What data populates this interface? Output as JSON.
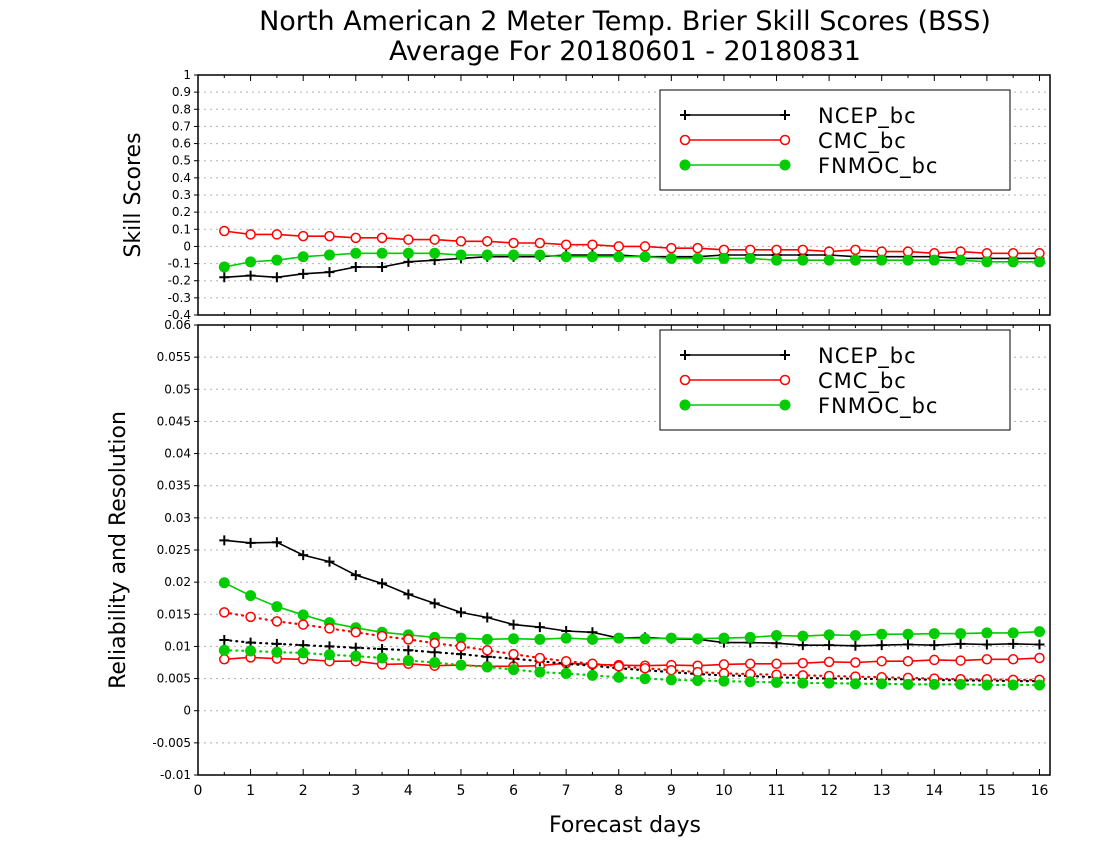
{
  "chart_data": {
    "title": "North American 2 Meter Temp. Brier Skill Scores (BSS)",
    "subtitle": "Average For 20180601 - 20180831",
    "xlabel": "Forecast days",
    "x_ticks": [
      "0",
      "1",
      "2",
      "3",
      "4",
      "5",
      "6",
      "7",
      "8",
      "9",
      "10",
      "11",
      "12",
      "13",
      "14",
      "15",
      "16"
    ],
    "xlim": [
      0,
      16.2
    ],
    "x": [
      0.5,
      1,
      1.5,
      2,
      2.5,
      3,
      3.5,
      4,
      4.5,
      5,
      5.5,
      6,
      6.5,
      7,
      7.5,
      8,
      8.5,
      9,
      9.5,
      10,
      10.5,
      11,
      11.5,
      12,
      12.5,
      13,
      13.5,
      14,
      14.5,
      15,
      15.5,
      16
    ],
    "panels": [
      {
        "type": "line",
        "ylabel": "Skill Scores",
        "ylim": [
          -0.4,
          1
        ],
        "y_ticks": [
          "1",
          "0.9",
          "0.8",
          "0.7",
          "0.6",
          "0.5",
          "0.4",
          "0.3",
          "0.2",
          "0.1",
          "0",
          "-0.1",
          "-0.2",
          "-0.3",
          "-0.4"
        ],
        "legend_position": "top-right",
        "series": [
          {
            "name": "NCEP_bc",
            "color": "#000000",
            "marker": "plus",
            "style": "solid",
            "values": [
              -0.18,
              -0.17,
              -0.18,
              -0.16,
              -0.15,
              -0.12,
              -0.12,
              -0.09,
              -0.08,
              -0.07,
              -0.06,
              -0.06,
              -0.06,
              -0.05,
              -0.05,
              -0.05,
              -0.06,
              -0.06,
              -0.06,
              -0.05,
              -0.05,
              -0.05,
              -0.05,
              -0.05,
              -0.06,
              -0.06,
              -0.06,
              -0.06,
              -0.07,
              -0.07,
              -0.07,
              -0.07
            ]
          },
          {
            "name": "CMC_bc",
            "color": "#ff0000",
            "marker": "circle-open",
            "style": "solid",
            "values": [
              0.09,
              0.07,
              0.07,
              0.06,
              0.06,
              0.05,
              0.05,
              0.04,
              0.04,
              0.03,
              0.03,
              0.02,
              0.02,
              0.01,
              0.01,
              0.0,
              0.0,
              -0.01,
              -0.01,
              -0.02,
              -0.02,
              -0.02,
              -0.02,
              -0.03,
              -0.02,
              -0.03,
              -0.03,
              -0.04,
              -0.03,
              -0.04,
              -0.04,
              -0.04
            ]
          },
          {
            "name": "FNMOC_bc",
            "color": "#00cc00",
            "marker": "circle-filled",
            "style": "solid",
            "values": [
              -0.12,
              -0.09,
              -0.08,
              -0.06,
              -0.05,
              -0.04,
              -0.04,
              -0.04,
              -0.04,
              -0.05,
              -0.05,
              -0.05,
              -0.05,
              -0.06,
              -0.06,
              -0.06,
              -0.06,
              -0.07,
              -0.07,
              -0.07,
              -0.07,
              -0.08,
              -0.08,
              -0.08,
              -0.08,
              -0.08,
              -0.08,
              -0.08,
              -0.08,
              -0.09,
              -0.09,
              -0.09
            ]
          }
        ]
      },
      {
        "type": "line",
        "ylabel": "Reliability and Resolution",
        "ylim": [
          -0.01,
          0.06
        ],
        "y_ticks": [
          "0.06",
          "0.055",
          "0.05",
          "0.045",
          "0.04",
          "0.035",
          "0.03",
          "0.025",
          "0.02",
          "0.015",
          "0.01",
          "0.005",
          "0",
          "-0.005",
          "-0.01"
        ],
        "legend_position": "top-right",
        "series": [
          {
            "name": "NCEP_bc",
            "color": "#000000",
            "marker": "plus",
            "style": "solid",
            "values": [
              0.0265,
              0.0261,
              0.0262,
              0.0242,
              0.0232,
              0.0211,
              0.0198,
              0.0181,
              0.0167,
              0.0153,
              0.0145,
              0.0134,
              0.013,
              0.0124,
              0.0122,
              0.0113,
              0.0114,
              0.0112,
              0.0111,
              0.0106,
              0.0106,
              0.0105,
              0.0102,
              0.0102,
              0.0101,
              0.0102,
              0.0103,
              0.0102,
              0.0104,
              0.0103,
              0.0104,
              0.0103
            ]
          },
          {
            "name": "CMC_bc",
            "color": "#ff0000",
            "marker": "circle-open",
            "style": "solid",
            "values": [
              0.008,
              0.0083,
              0.0081,
              0.008,
              0.0077,
              0.0077,
              0.0072,
              0.0073,
              0.007,
              0.0071,
              0.0069,
              0.0069,
              0.007,
              0.0074,
              0.0072,
              0.0071,
              0.007,
              0.0071,
              0.007,
              0.0072,
              0.0073,
              0.0073,
              0.0074,
              0.0076,
              0.0075,
              0.0077,
              0.0077,
              0.0079,
              0.0078,
              0.008,
              0.008,
              0.0082
            ]
          },
          {
            "name": "FNMOC_bc",
            "color": "#00cc00",
            "marker": "circle-filled",
            "style": "solid",
            "values": [
              0.0199,
              0.0179,
              0.0162,
              0.0149,
              0.0137,
              0.0129,
              0.0122,
              0.0118,
              0.0114,
              0.0113,
              0.0111,
              0.0112,
              0.0111,
              0.0113,
              0.0111,
              0.0113,
              0.0112,
              0.0113,
              0.0112,
              0.0113,
              0.0114,
              0.0117,
              0.0116,
              0.0118,
              0.0117,
              0.0119,
              0.0119,
              0.012,
              0.012,
              0.0121,
              0.0121,
              0.0123
            ]
          },
          {
            "name": "",
            "color": "#000000",
            "marker": "plus",
            "style": "dotted",
            "values": [
              0.011,
              0.0106,
              0.0104,
              0.0102,
              0.01,
              0.0098,
              0.0096,
              0.0094,
              0.0091,
              0.0088,
              0.0084,
              0.0081,
              0.0077,
              0.0073,
              0.007,
              0.0066,
              0.0063,
              0.006,
              0.0057,
              0.0055,
              0.0054,
              0.0052,
              0.0051,
              0.005,
              0.005,
              0.0049,
              0.0049,
              0.0048,
              0.0047,
              0.0047,
              0.0046,
              0.0046
            ]
          },
          {
            "name": "",
            "color": "#ff0000",
            "marker": "circle-open",
            "style": "dotted",
            "values": [
              0.0153,
              0.0146,
              0.0139,
              0.0134,
              0.0128,
              0.0122,
              0.0116,
              0.0111,
              0.0105,
              0.01,
              0.0094,
              0.0088,
              0.0082,
              0.0077,
              0.0073,
              0.0069,
              0.0066,
              0.0063,
              0.006,
              0.0058,
              0.0057,
              0.0056,
              0.0055,
              0.0054,
              0.0053,
              0.0052,
              0.0051,
              0.005,
              0.0049,
              0.0049,
              0.0048,
              0.0048
            ]
          },
          {
            "name": "",
            "color": "#00cc00",
            "marker": "circle-filled",
            "style": "dotted",
            "values": [
              0.0094,
              0.0093,
              0.0091,
              0.009,
              0.0087,
              0.0085,
              0.0082,
              0.0078,
              0.0075,
              0.0071,
              0.0068,
              0.0064,
              0.006,
              0.0058,
              0.0055,
              0.0052,
              0.005,
              0.0048,
              0.0047,
              0.0046,
              0.0045,
              0.0044,
              0.0043,
              0.0043,
              0.0042,
              0.0042,
              0.0041,
              0.0041,
              0.0041,
              0.004,
              0.004,
              0.004
            ]
          }
        ]
      }
    ]
  }
}
